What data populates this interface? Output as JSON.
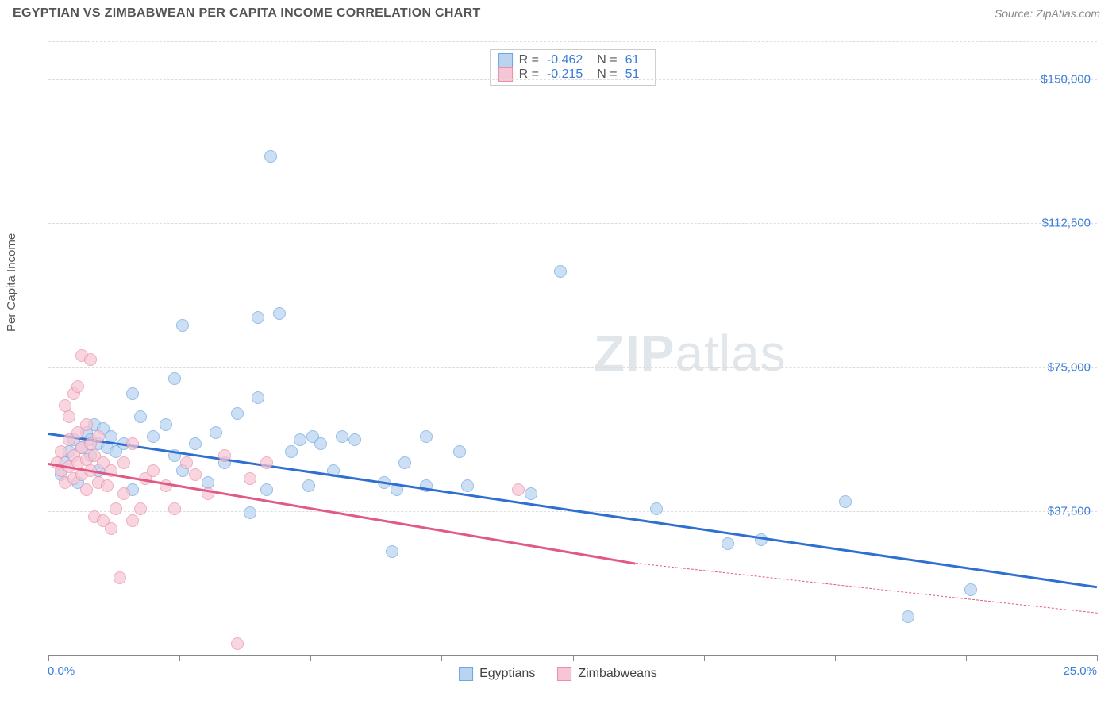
{
  "title": "EGYPTIAN VS ZIMBABWEAN PER CAPITA INCOME CORRELATION CHART",
  "source": "Source: ZipAtlas.com",
  "ylabel": "Per Capita Income",
  "watermark_zip": "ZIP",
  "watermark_atlas": "atlas",
  "chart": {
    "type": "scatter",
    "xlim": [
      0,
      25
    ],
    "ylim": [
      0,
      160000
    ],
    "x_tick_positions": [
      0,
      3.125,
      6.25,
      9.375,
      12.5,
      15.625,
      18.75,
      21.875,
      25
    ],
    "x_min_label": "0.0%",
    "x_max_label": "25.0%",
    "y_gridlines": [
      37500,
      75000,
      112500,
      150000,
      160000
    ],
    "y_tick_labels": {
      "37500": "$37,500",
      "75000": "$75,000",
      "112500": "$112,500",
      "150000": "$150,000"
    },
    "grid_color": "#dddddd",
    "axis_color": "#888888",
    "background_color": "#ffffff",
    "series": [
      {
        "name": "Egyptians",
        "fill": "#b9d4f1",
        "stroke": "#6ea6e0",
        "trend_color": "#2f6fd0",
        "R": "-0.462",
        "N": "61",
        "trend": {
          "x1": 0,
          "y1": 58000,
          "x2": 25,
          "y2": 18000
        },
        "points": [
          [
            0.3,
            47000
          ],
          [
            0.4,
            50000
          ],
          [
            0.5,
            53000
          ],
          [
            0.6,
            56000
          ],
          [
            0.7,
            45000
          ],
          [
            0.8,
            54000
          ],
          [
            0.9,
            58000
          ],
          [
            1.0,
            52000
          ],
          [
            1.0,
            56000
          ],
          [
            1.1,
            60000
          ],
          [
            1.2,
            48000
          ],
          [
            1.2,
            55000
          ],
          [
            1.3,
            59000
          ],
          [
            1.4,
            54000
          ],
          [
            1.5,
            57000
          ],
          [
            1.6,
            53000
          ],
          [
            1.8,
            55000
          ],
          [
            2.0,
            68000
          ],
          [
            2.0,
            43000
          ],
          [
            2.2,
            62000
          ],
          [
            2.5,
            57000
          ],
          [
            2.8,
            60000
          ],
          [
            3.0,
            72000
          ],
          [
            3.0,
            52000
          ],
          [
            3.2,
            48000
          ],
          [
            3.2,
            86000
          ],
          [
            3.5,
            55000
          ],
          [
            3.8,
            45000
          ],
          [
            4.0,
            58000
          ],
          [
            4.2,
            50000
          ],
          [
            4.5,
            63000
          ],
          [
            4.8,
            37000
          ],
          [
            5.0,
            67000
          ],
          [
            5.0,
            88000
          ],
          [
            5.2,
            43000
          ],
          [
            5.3,
            130000
          ],
          [
            5.5,
            89000
          ],
          [
            5.8,
            53000
          ],
          [
            6.0,
            56000
          ],
          [
            6.2,
            44000
          ],
          [
            6.3,
            57000
          ],
          [
            6.5,
            55000
          ],
          [
            6.8,
            48000
          ],
          [
            7.0,
            57000
          ],
          [
            7.3,
            56000
          ],
          [
            8.0,
            45000
          ],
          [
            8.2,
            27000
          ],
          [
            8.3,
            43000
          ],
          [
            8.5,
            50000
          ],
          [
            9.0,
            44000
          ],
          [
            9.0,
            57000
          ],
          [
            9.8,
            53000
          ],
          [
            10.0,
            44000
          ],
          [
            11.5,
            42000
          ],
          [
            12.2,
            100000
          ],
          [
            14.5,
            38000
          ],
          [
            16.2,
            29000
          ],
          [
            17.0,
            30000
          ],
          [
            19.0,
            40000
          ],
          [
            20.5,
            10000
          ],
          [
            22.0,
            17000
          ]
        ]
      },
      {
        "name": "Zimbabweans",
        "fill": "#f6c6d4",
        "stroke": "#ea8fa9",
        "trend_color": "#e05a85",
        "R": "-0.215",
        "N": "51",
        "trend_solid": {
          "x1": 0,
          "y1": 50000,
          "x2": 14,
          "y2": 24000
        },
        "trend_dashed": {
          "x1": 14,
          "y1": 24000,
          "x2": 25,
          "y2": 11000
        },
        "points": [
          [
            0.2,
            50000
          ],
          [
            0.3,
            48000
          ],
          [
            0.3,
            53000
          ],
          [
            0.4,
            65000
          ],
          [
            0.4,
            45000
          ],
          [
            0.5,
            62000
          ],
          [
            0.5,
            49000
          ],
          [
            0.5,
            56000
          ],
          [
            0.6,
            68000
          ],
          [
            0.6,
            52000
          ],
          [
            0.6,
            46000
          ],
          [
            0.7,
            58000
          ],
          [
            0.7,
            50000
          ],
          [
            0.7,
            70000
          ],
          [
            0.8,
            54000
          ],
          [
            0.8,
            47000
          ],
          [
            0.8,
            78000
          ],
          [
            0.9,
            51000
          ],
          [
            0.9,
            60000
          ],
          [
            0.9,
            43000
          ],
          [
            1.0,
            55000
          ],
          [
            1.0,
            77000
          ],
          [
            1.0,
            48000
          ],
          [
            1.1,
            52000
          ],
          [
            1.1,
            36000
          ],
          [
            1.2,
            45000
          ],
          [
            1.2,
            57000
          ],
          [
            1.3,
            50000
          ],
          [
            1.3,
            35000
          ],
          [
            1.4,
            44000
          ],
          [
            1.5,
            33000
          ],
          [
            1.5,
            48000
          ],
          [
            1.6,
            38000
          ],
          [
            1.7,
            20000
          ],
          [
            1.8,
            42000
          ],
          [
            1.8,
            50000
          ],
          [
            2.0,
            35000
          ],
          [
            2.0,
            55000
          ],
          [
            2.2,
            38000
          ],
          [
            2.3,
            46000
          ],
          [
            2.5,
            48000
          ],
          [
            2.8,
            44000
          ],
          [
            3.0,
            38000
          ],
          [
            3.3,
            50000
          ],
          [
            3.5,
            47000
          ],
          [
            3.8,
            42000
          ],
          [
            4.2,
            52000
          ],
          [
            4.5,
            3000
          ],
          [
            4.8,
            46000
          ],
          [
            5.2,
            50000
          ],
          [
            11.2,
            43000
          ]
        ]
      }
    ]
  },
  "legend_bottom": [
    {
      "label": "Egyptians",
      "fill": "#b9d4f1",
      "stroke": "#6ea6e0"
    },
    {
      "label": "Zimbabweans",
      "fill": "#f6c6d4",
      "stroke": "#ea8fa9"
    }
  ]
}
